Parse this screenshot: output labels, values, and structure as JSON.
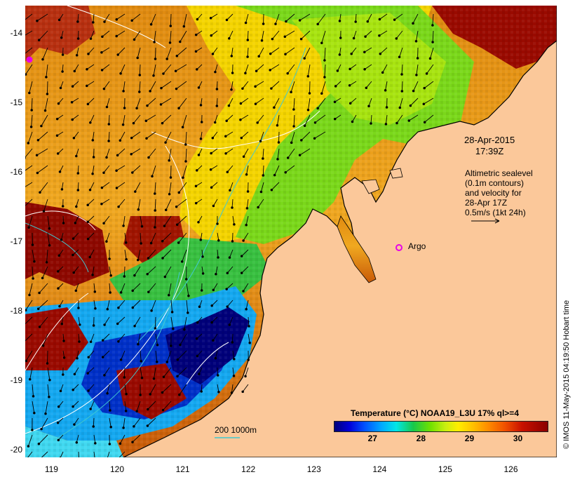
{
  "map": {
    "latitude_ticks": [
      "-14",
      "-15",
      "-16",
      "-17",
      "-18",
      "-19",
      "-20"
    ],
    "longitude_ticks": [
      "119",
      "120",
      "121",
      "122",
      "123",
      "124",
      "125",
      "126"
    ],
    "lat_range": [
      -20.1,
      -13.6
    ],
    "lon_range": [
      118.6,
      126.7
    ],
    "date_line1": "28-Apr-2015",
    "date_line2": "17:39Z",
    "legend_lines": [
      "Altimetric sealevel",
      "(0.1m contours)",
      "and velocity for",
      "28-Apr 17Z",
      "0.5m/s (1kt 24h)"
    ],
    "argo_label": "Argo",
    "depth_label": "200  1000m",
    "credit": "© IMOS 11-May-2015 04:19:50 Hobart time",
    "land_color": "#fbc89a",
    "argo_color": "#e800e8",
    "contour_color": "#ffffff",
    "isobath_color": "#40c8d0"
  },
  "colorbar": {
    "title": "Temperature (°C) NOAA19_L3U 17% ql>=4",
    "ticks": [
      "27",
      "28",
      "29",
      "30"
    ],
    "range": [
      26.2,
      30.6
    ]
  }
}
